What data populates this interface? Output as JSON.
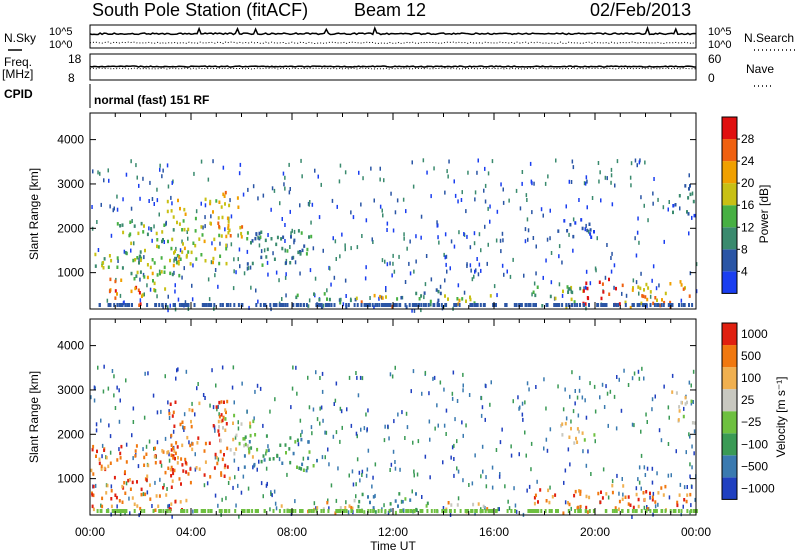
{
  "header": {
    "title": "South Pole Station (fitACF)",
    "beam": "Beam 12",
    "date": "02/Feb/2013"
  },
  "side_labels": {
    "nsky": "N.Sky",
    "nsearch": "N.Search",
    "freq": "Freq.",
    "freq_unit": "[MHz]",
    "nave": "Nave",
    "cpid": "CPID",
    "cpid_value": "normal (fast) 151 RF"
  },
  "noise_axis": {
    "left_ticks": [
      "10^5",
      "10^0"
    ],
    "right_ticks": [
      "10^5",
      "10^0"
    ]
  },
  "freq_axis": {
    "left_ticks": [
      "18",
      "8"
    ],
    "right_ticks": [
      "60",
      "0"
    ]
  },
  "chart_data": [
    {
      "type": "heatmap",
      "panel": "power",
      "ylabel": "Slant Range [km]",
      "ylim": [
        180,
        4600
      ],
      "y_ticks": [
        1000,
        2000,
        3000,
        4000
      ],
      "x_ticks": [
        "00:00",
        "04:00",
        "08:00",
        "12:00",
        "16:00",
        "20:00",
        "00:00"
      ],
      "colorbar": {
        "label": "Power [dB]",
        "range": [
          0,
          32
        ],
        "ticks": [
          4,
          8,
          12,
          16,
          20,
          24,
          28
        ],
        "colors": [
          "#1a3ef0",
          "#2a55a5",
          "#3a8a6e",
          "#47b043",
          "#c8c015",
          "#f0a000",
          "#ef6010",
          "#e01010"
        ]
      },
      "regions": [
        {
          "t0": 0.0,
          "t1": 0.8,
          "r0": 1100,
          "r1": 1800,
          "level": 3
        },
        {
          "t0": 0.6,
          "t1": 2.0,
          "r0": 300,
          "r1": 900,
          "level": 6
        },
        {
          "t0": 1.0,
          "t1": 3.5,
          "r0": 900,
          "r1": 2200,
          "level": 3
        },
        {
          "t0": 2.0,
          "t1": 3.0,
          "r0": 400,
          "r1": 1100,
          "level": 4
        },
        {
          "t0": 3.0,
          "t1": 5.5,
          "r0": 1200,
          "r1": 2700,
          "level": 4
        },
        {
          "t0": 5.0,
          "t1": 6.0,
          "r0": 1800,
          "r1": 2900,
          "level": 5
        },
        {
          "t0": 6.0,
          "t1": 9.0,
          "r0": 1200,
          "r1": 2000,
          "level": 2
        },
        {
          "t0": 8.0,
          "t1": 10.5,
          "r0": 250,
          "r1": 600,
          "level": 2
        },
        {
          "t0": 10.5,
          "t1": 12.0,
          "r0": 250,
          "r1": 550,
          "level": 5
        },
        {
          "t0": 12.0,
          "t1": 14.0,
          "r0": 250,
          "r1": 650,
          "level": 2
        },
        {
          "t0": 14.0,
          "t1": 16.0,
          "r0": 250,
          "r1": 550,
          "level": 4
        },
        {
          "t0": 17.5,
          "t1": 19.5,
          "r0": 250,
          "r1": 750,
          "level": 3
        },
        {
          "t0": 18.5,
          "t1": 20.0,
          "r0": 1800,
          "r1": 2300,
          "level": 1
        },
        {
          "t0": 19.5,
          "t1": 21.0,
          "r0": 300,
          "r1": 900,
          "level": 7
        },
        {
          "t0": 21.0,
          "t1": 23.8,
          "r0": 250,
          "r1": 900,
          "level": 5
        },
        {
          "t0": 23.0,
          "t1": 24.0,
          "r0": 2300,
          "r1": 3000,
          "level": 1
        }
      ]
    },
    {
      "type": "heatmap",
      "panel": "velocity",
      "ylabel": "Slant Range [km]",
      "xlabel": "Time UT",
      "ylim": [
        180,
        4600
      ],
      "y_ticks": [
        1000,
        2000,
        3000,
        4000
      ],
      "x_ticks": [
        "00:00",
        "04:00",
        "08:00",
        "12:00",
        "16:00",
        "20:00",
        "00:00"
      ],
      "colorbar": {
        "label": "Velocity [m s⁻¹]",
        "tick_labels": [
          "1000",
          "500",
          "100",
          "25",
          "−25",
          "−100",
          "−500",
          "−1000"
        ],
        "colors": [
          "#2040c0",
          "#3a7ab0",
          "#3a9a55",
          "#6ec040",
          "#c8c8c0",
          "#f0b050",
          "#f07810",
          "#e02010"
        ]
      },
      "regions": [
        {
          "t0": 0.0,
          "t1": 4.0,
          "r0": 300,
          "r1": 1800,
          "level": 6
        },
        {
          "t0": 3.0,
          "t1": 5.5,
          "r0": 1000,
          "r1": 2800,
          "level": 6
        },
        {
          "t0": 5.0,
          "t1": 6.5,
          "r0": 1500,
          "r1": 2500,
          "level": 4
        },
        {
          "t0": 6.0,
          "t1": 9.0,
          "r0": 1200,
          "r1": 2000,
          "level": 2
        },
        {
          "t0": 7.5,
          "t1": 10.5,
          "r0": 250,
          "r1": 550,
          "level": 5
        },
        {
          "t0": 10.5,
          "t1": 14.0,
          "r0": 250,
          "r1": 700,
          "level": 2
        },
        {
          "t0": 14.0,
          "t1": 16.0,
          "r0": 250,
          "r1": 500,
          "level": 5
        },
        {
          "t0": 17.5,
          "t1": 20.5,
          "r0": 250,
          "r1": 800,
          "level": 6
        },
        {
          "t0": 18.5,
          "t1": 20.0,
          "r0": 1800,
          "r1": 2300,
          "level": 4
        },
        {
          "t0": 20.5,
          "t1": 23.8,
          "r0": 300,
          "r1": 900,
          "level": 6
        },
        {
          "t0": 23.0,
          "t1": 24.0,
          "r0": 2200,
          "r1": 3000,
          "level": 4
        }
      ]
    }
  ]
}
